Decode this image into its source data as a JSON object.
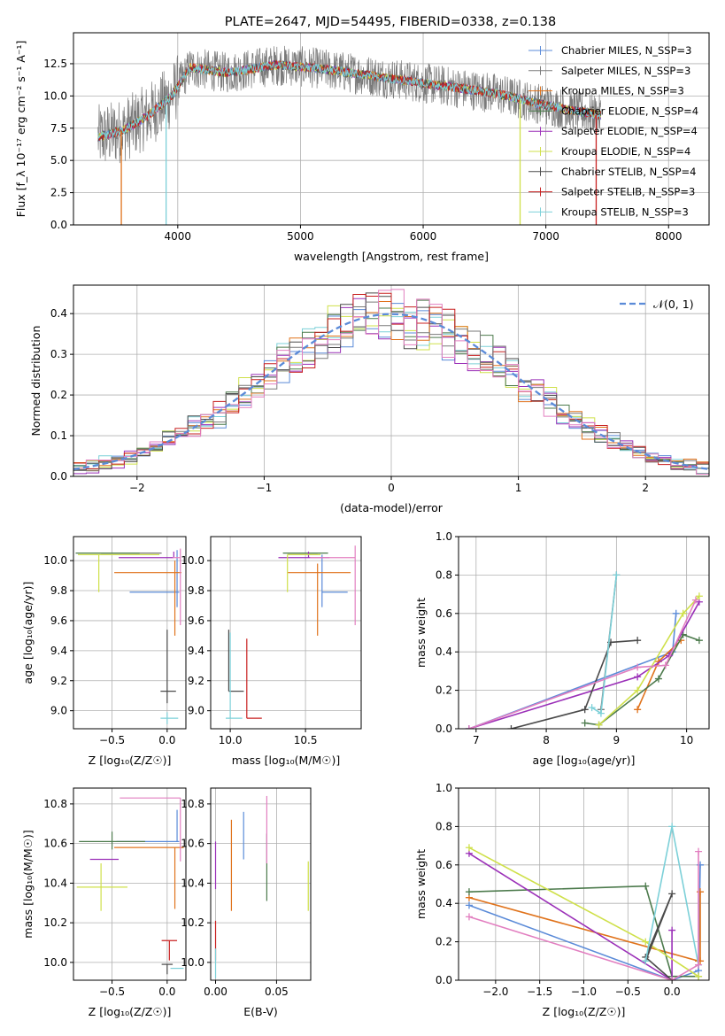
{
  "figure": {
    "title": "PLATE=2647, MJD=54495, FIBERID=0338, z=0.138"
  },
  "models": [
    {
      "name": "Chabrier MILES, N_SSP=3",
      "color": "#5b8bd8"
    },
    {
      "name": "Salpeter MILES, N_SSP=3",
      "color": "#7a7a7a"
    },
    {
      "name": "Kroupa MILES, N_SSP=3",
      "color": "#e0731c"
    },
    {
      "name": "Chabrier ELODIE, N_SSP=4",
      "color": "#4c7a4c"
    },
    {
      "name": "Salpeter ELODIE, N_SSP=4",
      "color": "#9b30b8"
    },
    {
      "name": "Kroupa ELODIE, N_SSP=4",
      "color": "#cfe04a"
    },
    {
      "name": "Chabrier STELIB, N_SSP=4",
      "color": "#4a4a4a"
    },
    {
      "name": "Salpeter STELIB, N_SSP=3",
      "color": "#c82020"
    },
    {
      "name": "Kroupa STELIB, N_SSP=3",
      "color": "#7cd0d8"
    }
  ],
  "extra_colors": {
    "pink": "#e27fc0",
    "normal_curve": "#5b8bd8"
  },
  "chart_data": [
    {
      "id": "spectrum",
      "type": "line",
      "xlabel": "wavelength [Angstrom, rest frame]",
      "ylabel": "Flux [f_λ 10⁻¹⁷ erg cm⁻² s⁻¹ A⁻¹]",
      "xlim": [
        3150,
        8330
      ],
      "ylim": [
        0,
        14.9
      ],
      "xticks": [
        4000,
        5000,
        6000,
        7000,
        8000
      ],
      "xtick_labels": [
        "4000",
        "5000",
        "6000",
        "7000",
        "8000"
      ],
      "yticks": [
        0,
        2.5,
        5,
        7.5,
        10,
        12.5
      ],
      "ytick_labels": [
        "0.0",
        "2.5",
        "5.0",
        "7.5",
        "10.0",
        "12.5"
      ],
      "legend": "right",
      "data_range": [
        3350,
        7450
      ],
      "continuum": [
        [
          3350,
          6.8
        ],
        [
          3550,
          7.3
        ],
        [
          3750,
          8.4
        ],
        [
          3950,
          10.0
        ],
        [
          4100,
          12.2
        ],
        [
          4400,
          11.8
        ],
        [
          4800,
          12.4
        ],
        [
          5100,
          12.2
        ],
        [
          5400,
          11.8
        ],
        [
          5700,
          11.4
        ],
        [
          6000,
          11.0
        ],
        [
          6300,
          10.6
        ],
        [
          6600,
          10.2
        ],
        [
          6900,
          9.5
        ],
        [
          7200,
          8.9
        ],
        [
          7450,
          8.5
        ]
      ],
      "dropouts": [
        [
          3540,
          0
        ],
        [
          3905,
          0
        ],
        [
          6790,
          0
        ],
        [
          7410,
          0
        ]
      ]
    },
    {
      "id": "residual_hist",
      "type": "histogram",
      "xlabel": "(data-model)/error",
      "ylabel": "Normed distribution",
      "xlim": [
        -2.5,
        2.5
      ],
      "ylim": [
        0,
        0.47
      ],
      "xticks": [
        -2,
        -1,
        0,
        1,
        2
      ],
      "xtick_labels": [
        "−2",
        "−1",
        "0",
        "1",
        "2"
      ],
      "yticks": [
        0,
        0.1,
        0.2,
        0.3,
        0.4
      ],
      "ytick_labels": [
        "0.0",
        "0.1",
        "0.2",
        "0.3",
        "0.4"
      ],
      "bins": 50,
      "legend": "top-right",
      "legend_label": "𝒩(0, 1)"
    },
    {
      "id": "age_vs_Z",
      "type": "errorbar",
      "xlabel": "Z [log₁₀(Z/Z☉)]",
      "ylabel": "age  [log₁₀(age/yr)]",
      "xlim": [
        -0.85,
        0.17
      ],
      "ylim": [
        8.88,
        10.16
      ],
      "xticks": [
        -0.5,
        0.0
      ],
      "xtick_labels": [
        "−0.5",
        "0.0"
      ],
      "yticks": [
        9.0,
        9.2,
        9.4,
        9.6,
        9.8,
        10.0
      ],
      "ytick_labels": [
        "9.0",
        "9.2",
        "9.4",
        "9.6",
        "9.8",
        "10.0"
      ],
      "points": [
        {
          "m": 0,
          "x": 0.09,
          "y": 9.79,
          "ex": [
            0.43,
            0.02
          ],
          "ey": [
            0.1,
            0.28
          ]
        },
        {
          "m": 1,
          "x": -0.05,
          "y": 10.05,
          "ex": [
            0.55,
            0.0
          ],
          "ey": [
            0.0,
            0.0
          ]
        },
        {
          "m": 2,
          "x": 0.07,
          "y": 9.92,
          "ex": [
            0.55,
            0.06
          ],
          "ey": [
            0.42,
            0.08
          ]
        },
        {
          "m": 3,
          "x": -0.5,
          "y": 10.05,
          "ex": [
            0.33,
            0.25
          ],
          "ey": [
            0.0,
            0.0
          ]
        },
        {
          "m": 4,
          "x": 0.06,
          "y": 10.02,
          "ex": [
            0.5,
            0.0
          ],
          "ey": [
            0.0,
            0.04
          ]
        },
        {
          "m": 5,
          "x": -0.62,
          "y": 10.04,
          "ex": [
            0.19,
            0.55
          ],
          "ey": [
            0.25,
            0.0
          ]
        },
        {
          "m": 6,
          "x": 0.0,
          "y": 9.13,
          "ex": [
            0.06,
            0.08
          ],
          "ey": [
            0.08,
            0.41
          ]
        },
        {
          "m": 7,
          "x": 0.05,
          "y": 10.02,
          "ex": [
            0.0,
            0.0
          ],
          "ey": [
            0.0,
            0.0
          ]
        },
        {
          "m": 8,
          "x": 0.0,
          "y": 8.95,
          "ex": [
            0.06,
            0.1
          ],
          "ey": [
            0.04,
            0.04
          ]
        },
        {
          "c": "pink",
          "x": 0.12,
          "y": 10.02,
          "ex": [
            0.07,
            0.0
          ],
          "ey": [
            0.45,
            0.06
          ]
        }
      ]
    },
    {
      "id": "age_vs_mass",
      "type": "errorbar",
      "xlabel": "mass [log₁₀(M/M☉)]",
      "ylabel": "",
      "xlim": [
        9.87,
        10.87
      ],
      "ylim": [
        8.88,
        10.16
      ],
      "xticks": [
        10.0,
        10.5
      ],
      "xtick_labels": [
        "10.0",
        "10.5"
      ],
      "yticks": [
        9.0,
        9.2,
        9.4,
        9.6,
        9.8,
        10.0
      ],
      "ytick_labels": [
        "9.0",
        "9.2",
        "9.4",
        "9.6",
        "9.8",
        "10.0"
      ],
      "points": [
        {
          "m": 0,
          "x": 10.61,
          "y": 9.79,
          "ex": [
            0.0,
            0.17
          ],
          "ey": [
            0.1,
            0.25
          ]
        },
        {
          "m": 1,
          "x": 10.58,
          "y": 10.05,
          "ex": [
            0.2,
            0.0
          ],
          "ey": [
            0.0,
            0.0
          ]
        },
        {
          "m": 2,
          "x": 10.58,
          "y": 9.92,
          "ex": [
            0.2,
            0.22
          ],
          "ey": [
            0.42,
            0.06
          ]
        },
        {
          "m": 3,
          "x": 10.61,
          "y": 10.05,
          "ex": [
            0.26,
            0.04
          ],
          "ey": [
            0.0,
            0.0
          ]
        },
        {
          "m": 4,
          "x": 10.52,
          "y": 10.02,
          "ex": [
            0.2,
            0.14
          ],
          "ey": [
            0.0,
            0.04
          ]
        },
        {
          "m": 5,
          "x": 10.38,
          "y": 10.04,
          "ex": [
            0.0,
            0.22
          ],
          "ey": [
            0.25,
            0.0
          ]
        },
        {
          "m": 6,
          "x": 9.99,
          "y": 9.13,
          "ex": [
            0.0,
            0.1
          ],
          "ey": [
            0.0,
            0.41
          ]
        },
        {
          "m": 7,
          "x": 10.11,
          "y": 8.95,
          "ex": [
            0.0,
            0.1
          ],
          "ey": [
            0.0,
            0.53
          ]
        },
        {
          "m": 8,
          "x": 10.0,
          "y": 8.95,
          "ex": [
            0.03,
            0.08
          ],
          "ey": [
            0.0,
            0.57
          ]
        },
        {
          "c": "pink",
          "x": 10.83,
          "y": 10.02,
          "ex": [
            0.3,
            0.0
          ],
          "ey": [
            0.45,
            0.08
          ]
        }
      ]
    },
    {
      "id": "weight_vs_age",
      "type": "line",
      "xlabel": "age  [log₁₀(age/yr)]",
      "ylabel": "mass weight",
      "xlim": [
        6.75,
        10.32
      ],
      "ylim": [
        0,
        1
      ],
      "xticks": [
        7,
        8,
        9,
        10
      ],
      "xtick_labels": [
        "7",
        "8",
        "9",
        "10"
      ],
      "yticks": [
        0,
        0.2,
        0.4,
        0.6,
        0.8,
        1.0
      ],
      "ytick_labels": [
        "0.0",
        "0.2",
        "0.4",
        "0.6",
        "0.8",
        "1.0"
      ],
      "series": [
        {
          "m": 0,
          "x": [
            6.9,
            9.8,
            9.85
          ],
          "y": [
            0.0,
            0.4,
            0.6
          ]
        },
        {
          "m": 1,
          "x": [
            8.78,
            9.0
          ],
          "y": [
            0.1,
            0.8
          ]
        },
        {
          "m": 2,
          "x": [
            9.3,
            9.6,
            9.92
          ],
          "y": [
            0.1,
            0.35,
            0.46
          ]
        },
        {
          "m": 3,
          "x": [
            8.55,
            8.75,
            9.6,
            9.95,
            10.18
          ],
          "y": [
            0.03,
            0.02,
            0.26,
            0.49,
            0.46
          ]
        },
        {
          "m": 4,
          "x": [
            6.9,
            9.3,
            9.75,
            10.18
          ],
          "y": [
            0.0,
            0.27,
            0.38,
            0.66
          ]
        },
        {
          "m": 5,
          "x": [
            8.75,
            9.3,
            9.95,
            10.18
          ],
          "y": [
            0.02,
            0.2,
            0.6,
            0.69
          ]
        },
        {
          "m": 6,
          "x": [
            7.5,
            8.55,
            8.92,
            9.3
          ],
          "y": [
            0.0,
            0.1,
            0.45,
            0.46
          ]
        },
        {
          "m": 8,
          "x": [
            8.65,
            8.78,
            9.0
          ],
          "y": [
            0.11,
            0.08,
            0.8
          ]
        },
        {
          "c": "pink",
          "x": [
            6.9,
            9.3,
            9.7,
            10.13
          ],
          "y": [
            0.0,
            0.32,
            0.33,
            0.67
          ]
        }
      ]
    },
    {
      "id": "mass_vs_Z",
      "type": "errorbar",
      "xlabel": "Z [log₁₀(Z/Z☉)]",
      "ylabel": "mass [log₁₀(M/M☉)]",
      "xlim": [
        -0.85,
        0.17
      ],
      "ylim": [
        9.91,
        10.88
      ],
      "xticks": [
        -0.5,
        0.0
      ],
      "xtick_labels": [
        "−0.5",
        "0.0"
      ],
      "yticks": [
        10.0,
        10.2,
        10.4,
        10.6,
        10.8
      ],
      "ytick_labels": [
        "10.0",
        "10.2",
        "10.4",
        "10.6",
        "10.8"
      ],
      "points": [
        {
          "m": 0,
          "x": 0.09,
          "y": 10.61,
          "ex": [
            0.55,
            0.02
          ],
          "ey": [
            0.0,
            0.16
          ]
        },
        {
          "m": 2,
          "x": 0.07,
          "y": 10.58,
          "ex": [
            0.55,
            0.08
          ],
          "ey": [
            0.31,
            0.0
          ]
        },
        {
          "m": 3,
          "x": -0.5,
          "y": 10.61,
          "ex": [
            0.3,
            0.3
          ],
          "ey": [
            0.04,
            0.05
          ]
        },
        {
          "m": 4,
          "x": -0.5,
          "y": 10.52,
          "ex": [
            0.2,
            0.06
          ],
          "ey": [
            0.0,
            0.0
          ]
        },
        {
          "m": 5,
          "x": -0.6,
          "y": 10.38,
          "ex": [
            0.22,
            0.24
          ],
          "ey": [
            0.12,
            0.12
          ]
        },
        {
          "m": 6,
          "x": 0.0,
          "y": 9.99,
          "ex": [
            0.05,
            0.05
          ],
          "ey": [
            0.05,
            0.0
          ]
        },
        {
          "m": 7,
          "x": 0.02,
          "y": 10.11,
          "ex": [
            0.07,
            0.07
          ],
          "ey": [
            0.1,
            0.0
          ]
        },
        {
          "m": 8,
          "x": 0.05,
          "y": 9.97,
          "ex": [
            0.02,
            0.1
          ],
          "ey": [
            0.0,
            0.0
          ]
        },
        {
          "c": "pink",
          "x": 0.12,
          "y": 10.83,
          "ex": [
            0.55,
            0.0
          ],
          "ey": [
            0.32,
            0.0
          ]
        }
      ]
    },
    {
      "id": "mass_vs_ebv",
      "type": "errorbar",
      "xlabel": "E(B-V)",
      "ylabel": "",
      "xlim": [
        -0.004,
        0.078
      ],
      "ylim": [
        9.91,
        10.88
      ],
      "xticks": [
        0.0,
        0.05
      ],
      "xtick_labels": [
        "0.00",
        "0.05"
      ],
      "yticks": [
        10.0,
        10.2,
        10.4,
        10.6,
        10.8
      ],
      "ytick_labels": [
        "10.0",
        "10.2",
        "10.4",
        "10.6",
        "10.8"
      ],
      "points": [
        {
          "m": 0,
          "x": 0.023,
          "y": 10.61,
          "ex": [
            0,
            0
          ],
          "ey": [
            0.09,
            0.15
          ]
        },
        {
          "m": 2,
          "x": 0.013,
          "y": 10.51,
          "ex": [
            0,
            0
          ],
          "ey": [
            0.25,
            0.21
          ]
        },
        {
          "m": 3,
          "x": 0.042,
          "y": 10.5,
          "ex": [
            0,
            0
          ],
          "ey": [
            0.19,
            0.15
          ]
        },
        {
          "m": 4,
          "x": 0.0,
          "y": 10.52,
          "ex": [
            0,
            0
          ],
          "ey": [
            0.15,
            0.09
          ]
        },
        {
          "m": 5,
          "x": 0.076,
          "y": 10.38,
          "ex": [
            0,
            0
          ],
          "ey": [
            0.12,
            0.13
          ]
        },
        {
          "m": 7,
          "x": 0.0,
          "y": 10.11,
          "ex": [
            0,
            0
          ],
          "ey": [
            0.1,
            0.1
          ]
        },
        {
          "m": 8,
          "x": 0.0,
          "y": 9.97,
          "ex": [
            0,
            0
          ],
          "ey": [
            0.05,
            0.1
          ]
        },
        {
          "c": "pink",
          "x": 0.042,
          "y": 10.7,
          "ex": [
            0,
            0
          ],
          "ey": [
            0.2,
            0.14
          ]
        }
      ]
    },
    {
      "id": "weight_vs_Z",
      "type": "line",
      "xlabel": "Z [log₁₀(Z/Z☉)]",
      "ylabel": "mass weight",
      "xlim": [
        -2.42,
        0.42
      ],
      "ylim": [
        0,
        1
      ],
      "xticks": [
        -2.0,
        -1.5,
        -1.0,
        -0.5,
        0.0
      ],
      "xtick_labels": [
        "−2.0",
        "−1.5",
        "−1.0",
        "−0.5",
        "0.0"
      ],
      "yticks": [
        0,
        0.2,
        0.4,
        0.6,
        0.8,
        1.0
      ],
      "ytick_labels": [
        "0.0",
        "0.2",
        "0.4",
        "0.6",
        "0.8",
        "1.0"
      ],
      "series": [
        {
          "m": 0,
          "x": [
            -2.3,
            0.0,
            0.3,
            0.32
          ],
          "y": [
            0.39,
            0.0,
            0.05,
            0.6
          ]
        },
        {
          "m": 2,
          "x": [
            -2.3,
            0.3,
            0.32,
            0.32
          ],
          "y": [
            0.43,
            0.1,
            0.1,
            0.46
          ]
        },
        {
          "m": 3,
          "x": [
            -2.3,
            -0.3,
            0.0,
            0.3
          ],
          "y": [
            0.46,
            0.49,
            0.02,
            0.02
          ]
        },
        {
          "m": 4,
          "x": [
            -2.3,
            0.0,
            0.0
          ],
          "y": [
            0.66,
            0.0,
            0.26
          ]
        },
        {
          "m": 5,
          "x": [
            -2.3,
            -0.3,
            0.3
          ],
          "y": [
            0.69,
            0.2,
            0.02
          ]
        },
        {
          "m": 6,
          "x": [
            -0.3,
            0.0,
            -0.3,
            0.0
          ],
          "y": [
            0.1,
            0.45,
            0.12,
            0.0
          ]
        },
        {
          "m": 8,
          "x": [
            -0.3,
            0.0,
            0.3
          ],
          "y": [
            0.1,
            0.8,
            0.08
          ]
        },
        {
          "c": "pink",
          "x": [
            -2.3,
            0.0,
            0.3,
            0.3
          ],
          "y": [
            0.33,
            0.0,
            0.08,
            0.67
          ]
        }
      ]
    }
  ]
}
